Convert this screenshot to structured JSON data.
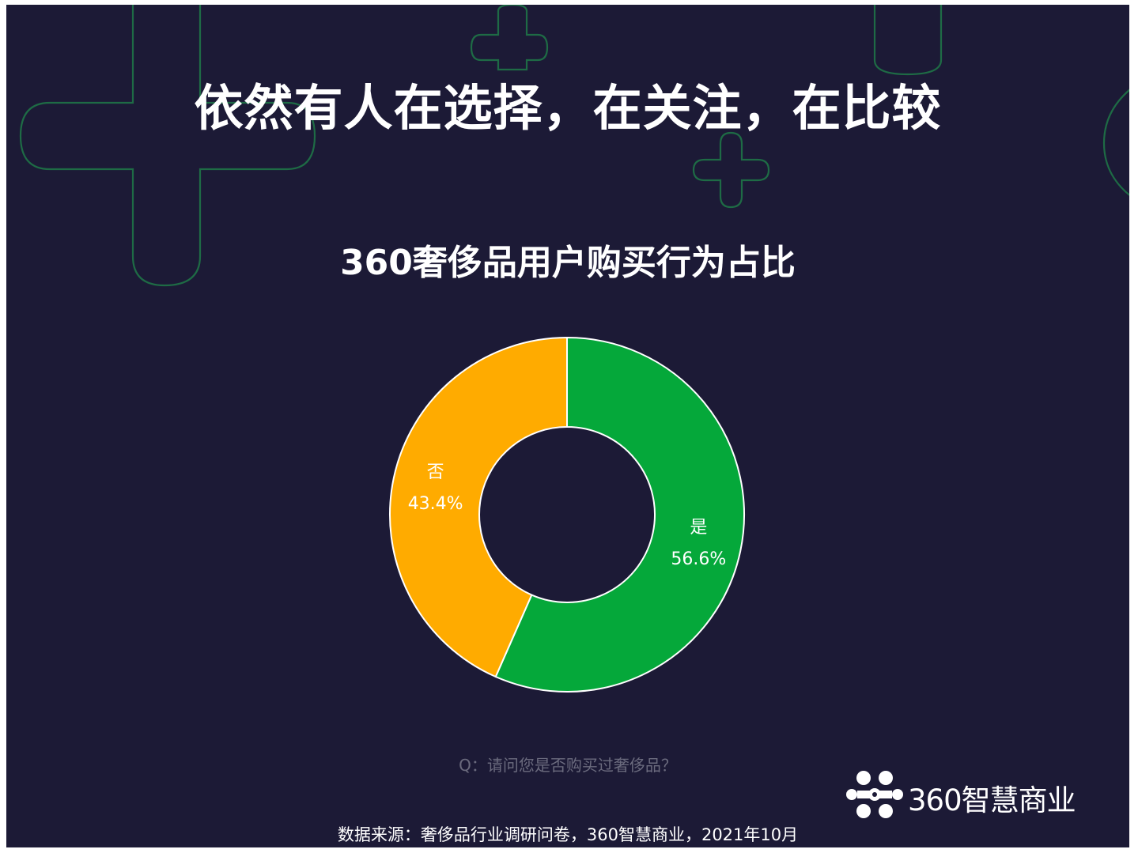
{
  "headline": "依然有人在选择，在关注，在比较",
  "chart_data": {
    "type": "pie",
    "variant": "donut",
    "title": "360奢侈品用户购买行为占比",
    "slices": [
      {
        "label": "是",
        "value_label": "56.6%",
        "value": 56.6,
        "color": "#05a83a"
      },
      {
        "label": "否",
        "value_label": "43.4%",
        "value": 43.4,
        "color": "#ffab00"
      }
    ]
  },
  "question": "Q：请问您是否购买过奢侈品？",
  "source": "数据来源：奢侈品行业调研问卷，360智慧商业，2021年10月",
  "logo": {
    "text": "360智慧商业"
  },
  "colors": {
    "background": "#1c1a36",
    "accent_green": "#05a83a",
    "accent_orange": "#ffab00"
  }
}
